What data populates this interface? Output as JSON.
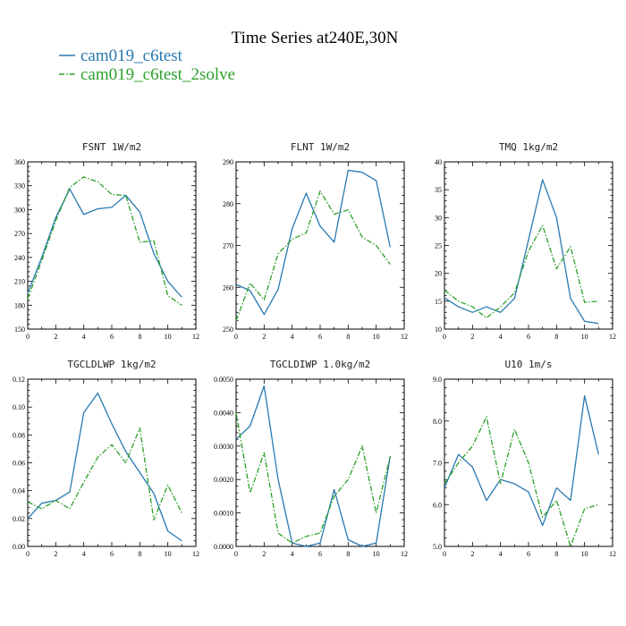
{
  "figure": {
    "title": "Time Series at240E,30N",
    "legend": [
      {
        "name": "cam019_c6test",
        "color": "#2878b0",
        "dash": "none"
      },
      {
        "name": "cam019_c6test_2solve",
        "color": "#2ca02c",
        "dash": "6,2,1.5,2"
      }
    ]
  },
  "chart_data": [
    {
      "type": "line",
      "title": "FSNT   1W/m2",
      "xlim": [
        0,
        12
      ],
      "xticks": [
        0,
        2,
        4,
        6,
        8,
        10,
        12
      ],
      "ylim": [
        150,
        360
      ],
      "yticks": [
        150,
        180,
        210,
        240,
        270,
        300,
        330,
        360
      ],
      "ytick_labels": [
        "150",
        "180",
        "210",
        "240",
        "270",
        "300",
        "330",
        "360"
      ],
      "x": [
        0,
        1,
        2,
        3,
        4,
        5,
        6,
        7,
        8,
        9,
        10,
        11
      ],
      "series": [
        {
          "name": "cam019_c6test",
          "values": [
            195,
            240,
            290,
            326,
            294,
            301,
            303,
            318,
            297,
            245,
            210,
            190
          ]
        },
        {
          "name": "cam019_c6test_2solve",
          "values": [
            188,
            236,
            286,
            328,
            341,
            335,
            319,
            318,
            259,
            261,
            192,
            180
          ]
        }
      ]
    },
    {
      "type": "line",
      "title": "FLNT   1W/m2",
      "xlim": [
        0,
        12
      ],
      "xticks": [
        0,
        2,
        4,
        6,
        8,
        10,
        12
      ],
      "ylim": [
        250,
        290
      ],
      "yticks": [
        250,
        260,
        270,
        280,
        290
      ],
      "ytick_labels": [
        "250",
        "260",
        "270",
        "280",
        "290"
      ],
      "x": [
        0,
        1,
        2,
        3,
        4,
        5,
        6,
        7,
        8,
        9,
        10,
        11
      ],
      "series": [
        {
          "name": "cam019_c6test",
          "values": [
            260.7,
            259.2,
            253.5,
            259.5,
            274.0,
            282.5,
            274.6,
            270.8,
            288.0,
            287.5,
            285.5,
            269.6
          ]
        },
        {
          "name": "cam019_c6test_2solve",
          "values": [
            252.0,
            261.0,
            257.0,
            268.0,
            271.5,
            273.0,
            283.0,
            277.5,
            278.5,
            272.0,
            270.0,
            265.5
          ]
        }
      ]
    },
    {
      "type": "line",
      "title": "TMQ   1kg/m2",
      "xlim": [
        0,
        12
      ],
      "xticks": [
        0,
        2,
        4,
        6,
        8,
        10,
        12
      ],
      "ylim": [
        10,
        40
      ],
      "yticks": [
        10,
        15,
        20,
        25,
        30,
        35,
        40
      ],
      "ytick_labels": [
        "10",
        "15",
        "20",
        "25",
        "30",
        "35",
        "40"
      ],
      "x": [
        0,
        1,
        2,
        3,
        4,
        5,
        6,
        7,
        8,
        9,
        10,
        11
      ],
      "series": [
        {
          "name": "cam019_c6test",
          "values": [
            15.6,
            14.0,
            13.0,
            14.0,
            13.0,
            15.5,
            26.0,
            36.8,
            30.0,
            15.5,
            11.4,
            11.0
          ]
        },
        {
          "name": "cam019_c6test_2solve",
          "values": [
            17.0,
            15.0,
            14.0,
            12.0,
            14.0,
            16.5,
            24.0,
            28.6,
            20.8,
            24.8,
            14.8,
            15.0
          ]
        }
      ]
    },
    {
      "type": "line",
      "title": "TGCLDLWP   1kg/m2",
      "xlim": [
        0,
        12
      ],
      "xticks": [
        0,
        2,
        4,
        6,
        8,
        10,
        12
      ],
      "ylim": [
        0,
        0.12
      ],
      "yticks": [
        0,
        0.02,
        0.04,
        0.06,
        0.08,
        0.1,
        0.12
      ],
      "ytick_labels": [
        "0.00",
        "0.02",
        "0.04",
        "0.06",
        "0.08",
        "0.10",
        "0.12"
      ],
      "x": [
        0,
        1,
        2,
        3,
        4,
        5,
        6,
        7,
        8,
        9,
        10,
        11
      ],
      "series": [
        {
          "name": "cam019_c6test",
          "values": [
            0.02,
            0.031,
            0.033,
            0.039,
            0.096,
            0.11,
            0.088,
            0.068,
            0.053,
            0.038,
            0.011,
            0.004
          ]
        },
        {
          "name": "cam019_c6test_2solve",
          "values": [
            0.032,
            0.027,
            0.033,
            0.027,
            0.046,
            0.064,
            0.073,
            0.06,
            0.085,
            0.019,
            0.044,
            0.024
          ]
        }
      ]
    },
    {
      "type": "line",
      "title": "TGCLDIWP   1.0kg/m2",
      "xlim": [
        0,
        12
      ],
      "xticks": [
        0,
        2,
        4,
        6,
        8,
        10,
        12
      ],
      "ylim": [
        0,
        0.005
      ],
      "yticks": [
        0,
        0.001,
        0.002,
        0.003,
        0.004,
        0.005
      ],
      "ytick_labels": [
        "0.0000",
        "0.0010",
        "0.0020",
        "0.0030",
        "0.0040",
        "0.0050"
      ],
      "x": [
        0,
        1,
        2,
        3,
        4,
        5,
        6,
        7,
        8,
        9,
        10,
        11
      ],
      "series": [
        {
          "name": "cam019_c6test",
          "values": [
            0.0032,
            0.0036,
            0.0048,
            0.002,
            0.0001,
            0.0,
            0.0001,
            0.0017,
            0.0002,
            0.0,
            0.0001,
            0.0027
          ]
        },
        {
          "name": "cam019_c6test_2solve",
          "values": [
            0.004,
            0.0016,
            0.0028,
            0.0004,
            0.0001,
            0.0003,
            0.0004,
            0.0015,
            0.002,
            0.003,
            0.001,
            0.0027
          ]
        }
      ]
    },
    {
      "type": "line",
      "title": "U10   1m/s",
      "xlim": [
        0,
        12
      ],
      "xticks": [
        0,
        2,
        4,
        6,
        8,
        10,
        12
      ],
      "ylim": [
        5,
        9
      ],
      "yticks": [
        5,
        6,
        7,
        8,
        9
      ],
      "ytick_labels": [
        "5.0",
        "6.0",
        "7.0",
        "8.0",
        "9.0"
      ],
      "x": [
        0,
        1,
        2,
        3,
        4,
        5,
        6,
        7,
        8,
        9,
        10,
        11
      ],
      "series": [
        {
          "name": "cam019_c6test",
          "values": [
            6.4,
            7.2,
            6.9,
            6.1,
            6.6,
            6.5,
            6.3,
            5.5,
            6.4,
            6.1,
            8.6,
            7.2
          ]
        },
        {
          "name": "cam019_c6test_2solve",
          "values": [
            6.5,
            7.0,
            7.4,
            8.1,
            6.5,
            7.8,
            7.0,
            5.7,
            6.1,
            5.0,
            5.9,
            6.0
          ]
        }
      ]
    }
  ]
}
